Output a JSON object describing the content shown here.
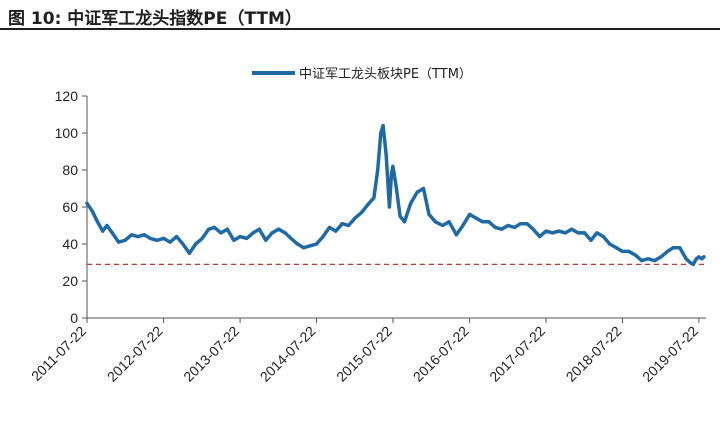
{
  "figure": {
    "title": "图 10:  中证军工龙头指数PE（TTM）"
  },
  "chart_data": {
    "type": "line",
    "title": "",
    "xlabel": "",
    "ylabel": "",
    "ylim": [
      0,
      120
    ],
    "yticks": [
      0,
      20,
      40,
      60,
      80,
      100,
      120
    ],
    "x_tick_labels": [
      "2011-07-22",
      "2012-07-22",
      "2013-07-22",
      "2014-07-22",
      "2015-07-22",
      "2016-07-22",
      "2017-07-22",
      "2018-07-22",
      "2019-07-22"
    ],
    "legend_position": "top-center",
    "grid": false,
    "series": [
      {
        "name": "中证军工龙头板块PE（TTM）",
        "color": "#1f6aa5",
        "points": [
          [
            "2011-07-22",
            62
          ],
          [
            "2011-08-15",
            58
          ],
          [
            "2011-09-10",
            52
          ],
          [
            "2011-10-05",
            47
          ],
          [
            "2011-10-25",
            50
          ],
          [
            "2011-11-20",
            46
          ],
          [
            "2011-12-20",
            41
          ],
          [
            "2012-01-20",
            42
          ],
          [
            "2012-02-20",
            45
          ],
          [
            "2012-03-20",
            44
          ],
          [
            "2012-04-20",
            45
          ],
          [
            "2012-05-20",
            43
          ],
          [
            "2012-06-20",
            42
          ],
          [
            "2012-07-22",
            43
          ],
          [
            "2012-08-22",
            41
          ],
          [
            "2012-09-22",
            44
          ],
          [
            "2012-10-22",
            40
          ],
          [
            "2012-11-22",
            35
          ],
          [
            "2012-12-22",
            40
          ],
          [
            "2013-01-22",
            43
          ],
          [
            "2013-02-22",
            48
          ],
          [
            "2013-03-22",
            49
          ],
          [
            "2013-04-22",
            46
          ],
          [
            "2013-05-22",
            48
          ],
          [
            "2013-06-22",
            42
          ],
          [
            "2013-07-22",
            44
          ],
          [
            "2013-08-22",
            43
          ],
          [
            "2013-09-22",
            46
          ],
          [
            "2013-10-22",
            48
          ],
          [
            "2013-11-22",
            42
          ],
          [
            "2013-12-22",
            46
          ],
          [
            "2014-01-22",
            48
          ],
          [
            "2014-02-22",
            46
          ],
          [
            "2014-03-22",
            43
          ],
          [
            "2014-04-22",
            40
          ],
          [
            "2014-05-22",
            38
          ],
          [
            "2014-06-22",
            39
          ],
          [
            "2014-07-22",
            40
          ],
          [
            "2014-08-22",
            44
          ],
          [
            "2014-09-22",
            49
          ],
          [
            "2014-10-22",
            47
          ],
          [
            "2014-11-22",
            51
          ],
          [
            "2014-12-22",
            50
          ],
          [
            "2015-01-22",
            54
          ],
          [
            "2015-02-22",
            57
          ],
          [
            "2015-03-22",
            61
          ],
          [
            "2015-04-22",
            65
          ],
          [
            "2015-05-10",
            80
          ],
          [
            "2015-05-25",
            100
          ],
          [
            "2015-06-05",
            104
          ],
          [
            "2015-06-20",
            88
          ],
          [
            "2015-07-05",
            60
          ],
          [
            "2015-07-15",
            78
          ],
          [
            "2015-07-22",
            82
          ],
          [
            "2015-08-05",
            72
          ],
          [
            "2015-08-25",
            55
          ],
          [
            "2015-09-15",
            52
          ],
          [
            "2015-10-15",
            62
          ],
          [
            "2015-11-15",
            68
          ],
          [
            "2015-12-15",
            70
          ],
          [
            "2016-01-10",
            56
          ],
          [
            "2016-02-10",
            52
          ],
          [
            "2016-03-15",
            50
          ],
          [
            "2016-04-15",
            52
          ],
          [
            "2016-05-20",
            45
          ],
          [
            "2016-06-20",
            50
          ],
          [
            "2016-07-22",
            56
          ],
          [
            "2016-08-22",
            54
          ],
          [
            "2016-09-22",
            52
          ],
          [
            "2016-10-22",
            52
          ],
          [
            "2016-11-22",
            49
          ],
          [
            "2016-12-22",
            48
          ],
          [
            "2017-01-22",
            50
          ],
          [
            "2017-02-22",
            49
          ],
          [
            "2017-03-22",
            51
          ],
          [
            "2017-04-22",
            51
          ],
          [
            "2017-05-22",
            48
          ],
          [
            "2017-06-22",
            44
          ],
          [
            "2017-07-22",
            47
          ],
          [
            "2017-08-22",
            46
          ],
          [
            "2017-09-22",
            47
          ],
          [
            "2017-10-22",
            46
          ],
          [
            "2017-11-22",
            48
          ],
          [
            "2017-12-22",
            46
          ],
          [
            "2018-01-22",
            46
          ],
          [
            "2018-02-22",
            42
          ],
          [
            "2018-03-22",
            46
          ],
          [
            "2018-04-22",
            44
          ],
          [
            "2018-05-22",
            40
          ],
          [
            "2018-06-22",
            38
          ],
          [
            "2018-07-22",
            36
          ],
          [
            "2018-08-22",
            36
          ],
          [
            "2018-09-22",
            34
          ],
          [
            "2018-10-22",
            31
          ],
          [
            "2018-11-22",
            32
          ],
          [
            "2018-12-22",
            31
          ],
          [
            "2019-01-22",
            33
          ],
          [
            "2019-02-22",
            36
          ],
          [
            "2019-03-22",
            38
          ],
          [
            "2019-04-22",
            38
          ],
          [
            "2019-05-22",
            32
          ],
          [
            "2019-06-10",
            30
          ],
          [
            "2019-06-25",
            29
          ],
          [
            "2019-07-10",
            32
          ],
          [
            "2019-07-22",
            33
          ],
          [
            "2019-08-05",
            32
          ],
          [
            "2019-08-15",
            33
          ]
        ]
      },
      {
        "name": "",
        "type": "reference-line",
        "color": "#c0392b",
        "dashed": true,
        "y": 29
      }
    ]
  }
}
